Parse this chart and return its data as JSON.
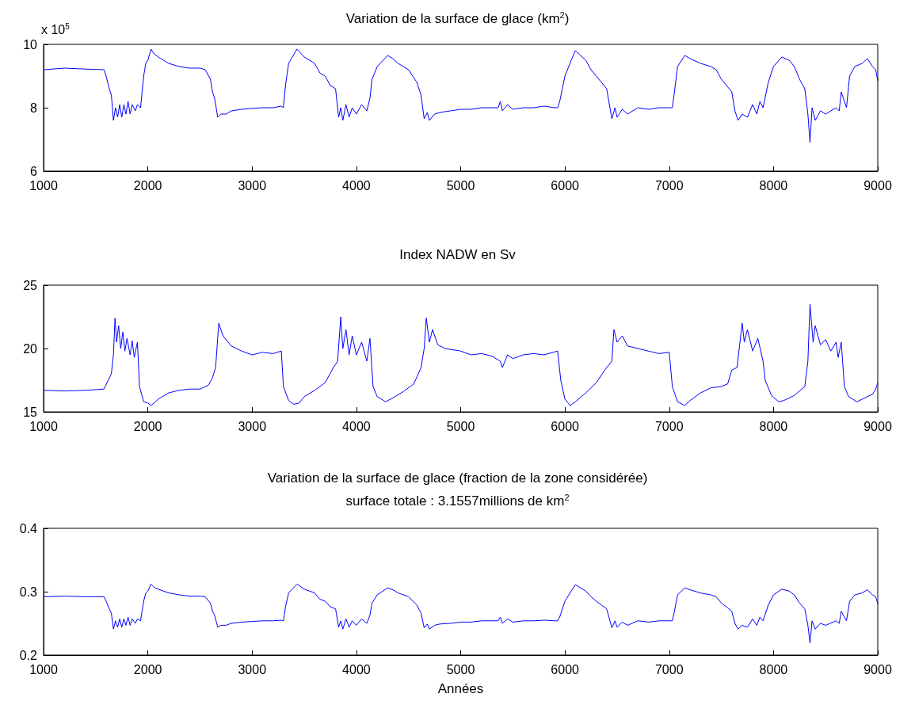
{
  "chart_data": [
    {
      "type": "line",
      "title": "Variation de la surface de glace (km$^{2}$)",
      "annotations": [
        "x 10$^{5}$"
      ],
      "xlim": [
        1000,
        9000
      ],
      "xticks": [
        1000,
        2000,
        3000,
        4000,
        5000,
        6000,
        7000,
        8000,
        9000
      ],
      "ylim": [
        6,
        10
      ],
      "yticks": [
        6,
        8,
        10
      ],
      "grid": false,
      "x": [
        1000,
        1200,
        1400,
        1580,
        1600,
        1630,
        1650,
        1670,
        1690,
        1710,
        1730,
        1750,
        1770,
        1790,
        1810,
        1830,
        1850,
        1880,
        1900,
        1930,
        1960,
        1980,
        2000,
        2030,
        2060,
        2100,
        2200,
        2300,
        2400,
        2500,
        2550,
        2600,
        2620,
        2640,
        2670,
        2700,
        2750,
        2800,
        2900,
        3000,
        3100,
        3200,
        3280,
        3300,
        3320,
        3350,
        3430,
        3500,
        3550,
        3600,
        3650,
        3700,
        3750,
        3800,
        3830,
        3850,
        3870,
        3900,
        3930,
        3960,
        4000,
        4050,
        4100,
        4130,
        4150,
        4200,
        4300,
        4350,
        4400,
        4500,
        4580,
        4620,
        4650,
        4680,
        4700,
        4750,
        4800,
        4900,
        5000,
        5100,
        5200,
        5300,
        5360,
        5380,
        5400,
        5450,
        5500,
        5600,
        5700,
        5800,
        5900,
        5930,
        5950,
        6000,
        6060,
        6100,
        6200,
        6250,
        6300,
        6350,
        6400,
        6450,
        6480,
        6500,
        6550,
        6600,
        6700,
        6800,
        6900,
        7000,
        7030,
        7050,
        7080,
        7150,
        7200,
        7300,
        7400,
        7450,
        7500,
        7550,
        7600,
        7630,
        7660,
        7700,
        7750,
        7800,
        7840,
        7870,
        7900,
        7950,
        8000,
        8080,
        8150,
        8200,
        8250,
        8300,
        8330,
        8350,
        8370,
        8400,
        8450,
        8500,
        8600,
        8630,
        8650,
        8680,
        8700,
        8730,
        8780,
        8850,
        8900,
        8950,
        8980,
        9000
      ],
      "series": [
        {
          "color": "#0000ff",
          "values": [
            9.2,
            9.25,
            9.22,
            9.2,
            9.0,
            8.6,
            8.4,
            7.6,
            8.0,
            7.7,
            8.1,
            7.7,
            8.1,
            7.8,
            8.2,
            7.8,
            8.1,
            7.9,
            8.1,
            8.0,
            9.0,
            9.4,
            9.5,
            9.85,
            9.7,
            9.6,
            9.4,
            9.3,
            9.25,
            9.25,
            9.2,
            8.9,
            8.5,
            8.3,
            7.7,
            7.8,
            7.8,
            7.9,
            7.95,
            7.98,
            8.0,
            8.0,
            8.05,
            8.0,
            8.7,
            9.4,
            9.85,
            9.6,
            9.5,
            9.4,
            9.1,
            9.0,
            8.7,
            8.6,
            7.7,
            8.0,
            7.6,
            8.1,
            7.7,
            8.0,
            7.8,
            8.1,
            7.9,
            8.3,
            8.9,
            9.3,
            9.65,
            9.55,
            9.4,
            9.2,
            8.8,
            8.4,
            7.65,
            7.85,
            7.6,
            7.8,
            7.85,
            7.9,
            7.95,
            7.95,
            8.0,
            8.0,
            8.0,
            8.2,
            7.9,
            8.1,
            7.95,
            8.0,
            8.0,
            8.05,
            8.0,
            8.0,
            8.2,
            9.0,
            9.5,
            9.8,
            9.5,
            9.2,
            9.0,
            8.8,
            8.6,
            7.65,
            8.0,
            7.7,
            7.95,
            7.8,
            8.0,
            7.95,
            8.0,
            8.0,
            8.0,
            8.5,
            9.3,
            9.65,
            9.55,
            9.4,
            9.3,
            9.2,
            8.9,
            8.7,
            8.5,
            7.9,
            7.6,
            7.8,
            7.7,
            8.1,
            7.8,
            8.2,
            8.0,
            8.8,
            9.3,
            9.6,
            9.5,
            9.3,
            8.9,
            8.6,
            7.8,
            6.9,
            8.0,
            7.6,
            7.9,
            7.8,
            8.0,
            7.9,
            8.5,
            8.2,
            8.0,
            9.0,
            9.3,
            9.4,
            9.55,
            9.3,
            9.2,
            8.85
          ]
        }
      ]
    },
    {
      "type": "line",
      "title": "Index NADW en Sv",
      "xlim": [
        1000,
        9000
      ],
      "xticks": [
        1000,
        2000,
        3000,
        4000,
        5000,
        6000,
        7000,
        8000,
        9000
      ],
      "ylim": [
        15,
        25
      ],
      "yticks": [
        15,
        20,
        25
      ],
      "grid": false,
      "x": [
        1000,
        1200,
        1400,
        1580,
        1620,
        1650,
        1670,
        1685,
        1700,
        1720,
        1740,
        1760,
        1780,
        1800,
        1830,
        1850,
        1870,
        1900,
        1920,
        1960,
        2000,
        2030,
        2100,
        2200,
        2300,
        2400,
        2500,
        2580,
        2620,
        2650,
        2680,
        2720,
        2800,
        2900,
        3000,
        3100,
        3200,
        3280,
        3300,
        3350,
        3400,
        3450,
        3500,
        3600,
        3700,
        3780,
        3820,
        3850,
        3870,
        3900,
        3930,
        3960,
        4000,
        4050,
        4100,
        4130,
        4160,
        4200,
        4280,
        4350,
        4450,
        4550,
        4620,
        4650,
        4670,
        4700,
        4730,
        4780,
        4850,
        5000,
        5100,
        5200,
        5300,
        5380,
        5400,
        5450,
        5500,
        5600,
        5700,
        5800,
        5930,
        5960,
        6000,
        6050,
        6100,
        6200,
        6300,
        6400,
        6450,
        6470,
        6500,
        6550,
        6600,
        6700,
        6800,
        6900,
        7000,
        7030,
        7080,
        7150,
        7200,
        7300,
        7400,
        7500,
        7560,
        7600,
        7650,
        7700,
        7720,
        7750,
        7800,
        7850,
        7900,
        7920,
        7980,
        8050,
        8100,
        8200,
        8300,
        8330,
        8350,
        8380,
        8400,
        8450,
        8500,
        8550,
        8600,
        8620,
        8650,
        8680,
        8720,
        8800,
        8850,
        8950,
        8980,
        9000
      ],
      "series": [
        {
          "color": "#0000ff",
          "values": [
            16.7,
            16.65,
            16.7,
            16.8,
            17.5,
            18.0,
            19.5,
            22.4,
            20.5,
            21.8,
            20.0,
            21.3,
            19.8,
            20.8,
            19.5,
            20.6,
            19.3,
            20.5,
            17.0,
            15.8,
            15.7,
            15.5,
            16.0,
            16.5,
            16.7,
            16.8,
            16.8,
            17.1,
            17.7,
            18.5,
            22.0,
            21.0,
            20.2,
            19.8,
            19.5,
            19.7,
            19.6,
            19.8,
            17.0,
            15.9,
            15.6,
            15.7,
            16.2,
            16.7,
            17.3,
            18.5,
            19.0,
            22.5,
            20.0,
            21.5,
            19.5,
            21.0,
            19.5,
            20.5,
            19.0,
            20.8,
            17.0,
            16.2,
            15.8,
            16.1,
            16.6,
            17.2,
            18.5,
            20.0,
            22.4,
            20.5,
            21.5,
            20.3,
            20.0,
            19.8,
            19.5,
            19.6,
            19.4,
            19.0,
            18.5,
            19.5,
            19.2,
            19.5,
            19.6,
            19.5,
            19.8,
            17.5,
            16.0,
            15.5,
            15.8,
            16.5,
            17.3,
            18.5,
            19.0,
            21.5,
            20.5,
            21.0,
            20.2,
            20.0,
            19.8,
            19.6,
            19.7,
            17.0,
            15.8,
            15.5,
            15.9,
            16.5,
            16.9,
            17.0,
            17.2,
            18.3,
            18.5,
            22.0,
            20.5,
            21.5,
            19.8,
            20.8,
            19.0,
            17.5,
            16.3,
            15.8,
            15.9,
            16.3,
            17.0,
            19.0,
            23.5,
            20.5,
            21.8,
            20.3,
            20.7,
            19.8,
            20.5,
            19.3,
            20.5,
            17.0,
            16.2,
            15.8,
            16.0,
            16.4,
            16.8,
            17.3
          ]
        }
      ]
    },
    {
      "type": "line",
      "title": "Variation de la surface de glace (fraction de la zone considérée)",
      "subtitle": "surface totale : 3.1557millions de km$^{2}$",
      "xlabel": "Années",
      "xlim": [
        1000,
        9000
      ],
      "xticks": [
        1000,
        2000,
        3000,
        4000,
        5000,
        6000,
        7000,
        8000,
        9000
      ],
      "ylim": [
        0.2,
        0.4
      ],
      "yticks": [
        0.2,
        0.3,
        0.4
      ],
      "grid": false,
      "x": [
        1000,
        1200,
        1400,
        1580,
        1600,
        1630,
        1650,
        1670,
        1690,
        1710,
        1730,
        1750,
        1770,
        1790,
        1810,
        1830,
        1850,
        1880,
        1900,
        1930,
        1960,
        1980,
        2000,
        2030,
        2060,
        2100,
        2200,
        2300,
        2400,
        2500,
        2550,
        2600,
        2620,
        2640,
        2670,
        2700,
        2750,
        2800,
        2900,
        3000,
        3100,
        3200,
        3280,
        3300,
        3320,
        3350,
        3430,
        3500,
        3550,
        3600,
        3650,
        3700,
        3750,
        3800,
        3830,
        3850,
        3870,
        3900,
        3930,
        3960,
        4000,
        4050,
        4100,
        4130,
        4150,
        4200,
        4300,
        4350,
        4400,
        4500,
        4580,
        4620,
        4650,
        4680,
        4700,
        4750,
        4800,
        4900,
        5000,
        5100,
        5200,
        5300,
        5360,
        5380,
        5400,
        5450,
        5500,
        5600,
        5700,
        5800,
        5900,
        5930,
        5950,
        6000,
        6060,
        6100,
        6200,
        6250,
        6300,
        6350,
        6400,
        6450,
        6480,
        6500,
        6550,
        6600,
        6700,
        6800,
        6900,
        7000,
        7030,
        7050,
        7080,
        7150,
        7200,
        7300,
        7400,
        7450,
        7500,
        7550,
        7600,
        7630,
        7660,
        7700,
        7750,
        7800,
        7840,
        7870,
        7900,
        7950,
        8000,
        8080,
        8150,
        8200,
        8250,
        8300,
        8330,
        8350,
        8370,
        8400,
        8450,
        8500,
        8600,
        8630,
        8650,
        8680,
        8700,
        8730,
        8780,
        8850,
        8900,
        8950,
        8980,
        9000
      ],
      "series": [
        {
          "color": "#0000ff",
          "values": [
            0.292,
            0.293,
            0.292,
            0.292,
            0.285,
            0.273,
            0.266,
            0.241,
            0.254,
            0.244,
            0.257,
            0.244,
            0.257,
            0.247,
            0.26,
            0.247,
            0.257,
            0.25,
            0.257,
            0.254,
            0.285,
            0.298,
            0.301,
            0.312,
            0.307,
            0.304,
            0.298,
            0.295,
            0.293,
            0.293,
            0.292,
            0.282,
            0.269,
            0.263,
            0.244,
            0.247,
            0.247,
            0.25,
            0.252,
            0.253,
            0.254,
            0.254,
            0.255,
            0.254,
            0.276,
            0.298,
            0.312,
            0.304,
            0.301,
            0.298,
            0.288,
            0.285,
            0.276,
            0.273,
            0.244,
            0.254,
            0.241,
            0.257,
            0.244,
            0.254,
            0.247,
            0.257,
            0.25,
            0.263,
            0.282,
            0.295,
            0.306,
            0.303,
            0.298,
            0.292,
            0.279,
            0.266,
            0.243,
            0.249,
            0.241,
            0.247,
            0.249,
            0.25,
            0.252,
            0.252,
            0.254,
            0.254,
            0.254,
            0.26,
            0.25,
            0.257,
            0.252,
            0.254,
            0.254,
            0.255,
            0.254,
            0.254,
            0.26,
            0.285,
            0.301,
            0.311,
            0.301,
            0.292,
            0.285,
            0.279,
            0.273,
            0.243,
            0.254,
            0.244,
            0.252,
            0.247,
            0.254,
            0.252,
            0.254,
            0.254,
            0.254,
            0.269,
            0.295,
            0.306,
            0.303,
            0.298,
            0.295,
            0.292,
            0.282,
            0.276,
            0.269,
            0.25,
            0.241,
            0.247,
            0.244,
            0.257,
            0.247,
            0.26,
            0.254,
            0.279,
            0.295,
            0.304,
            0.301,
            0.295,
            0.282,
            0.273,
            0.247,
            0.219,
            0.254,
            0.241,
            0.25,
            0.247,
            0.254,
            0.25,
            0.269,
            0.26,
            0.254,
            0.285,
            0.295,
            0.298,
            0.303,
            0.295,
            0.292,
            0.281
          ]
        }
      ]
    }
  ]
}
